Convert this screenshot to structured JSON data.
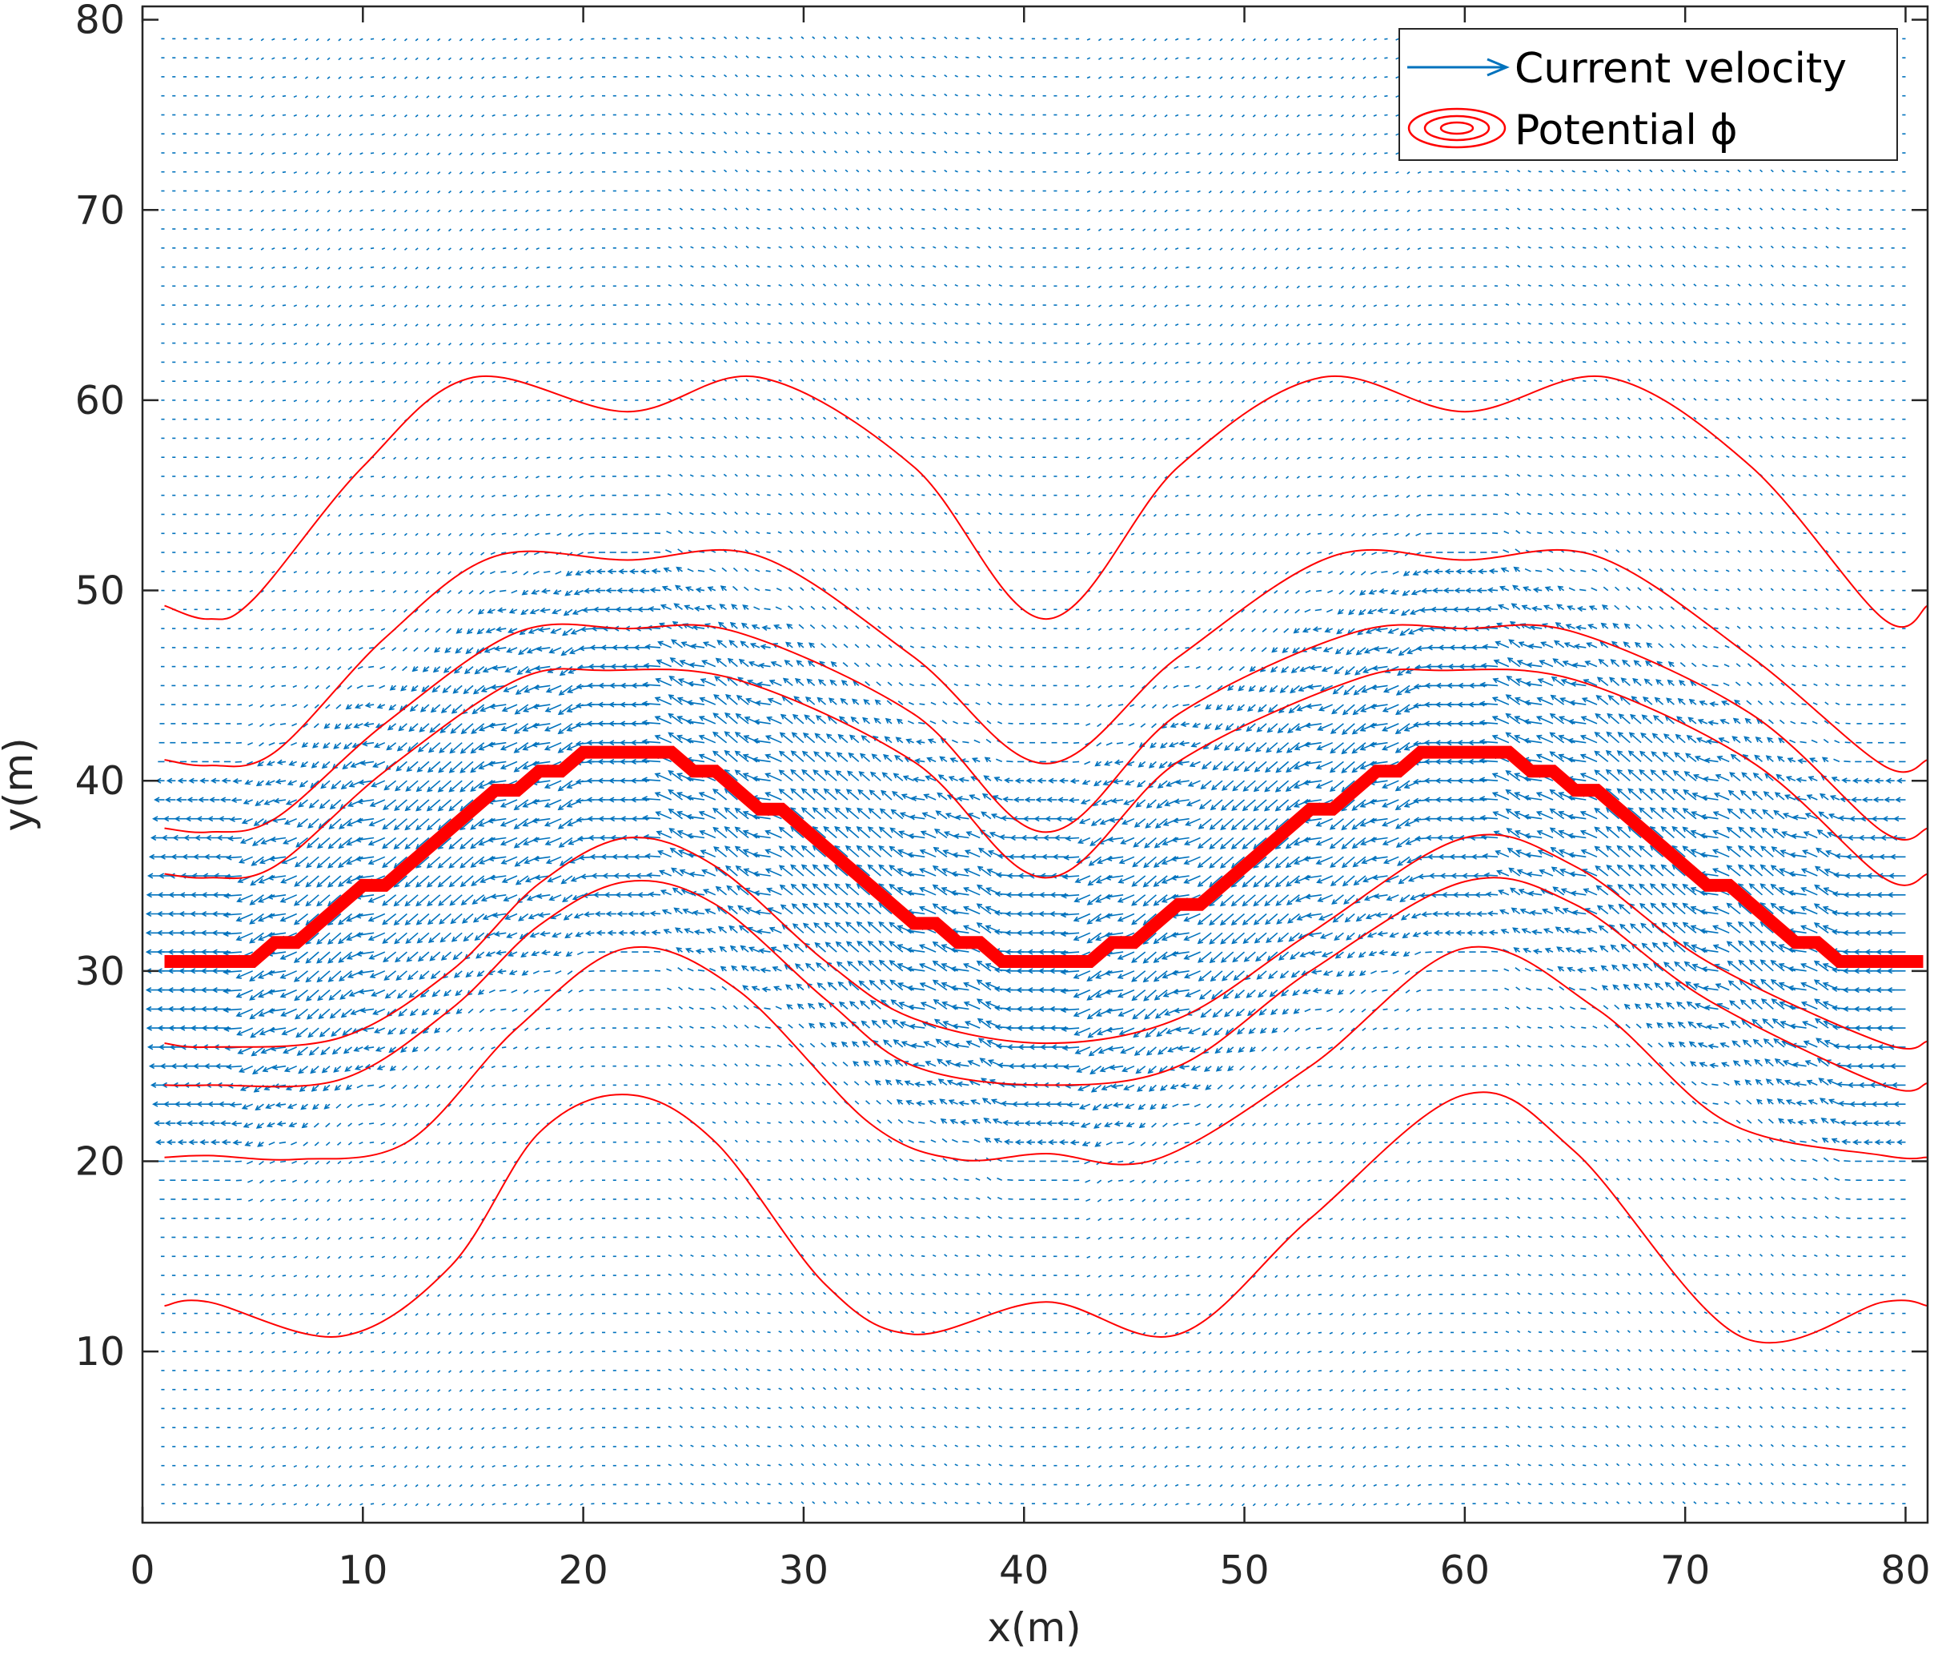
{
  "chart_data": {
    "type": "quiver_contour",
    "xlabel": "x(m)",
    "ylabel": "y(m)",
    "xlim": [
      0,
      80
    ],
    "ylim": [
      1,
      80
    ],
    "xticks": [
      "0",
      "10",
      "20",
      "30",
      "40",
      "50",
      "60",
      "70",
      "80"
    ],
    "yticks": [
      "10",
      "20",
      "30",
      "40",
      "50",
      "60",
      "70",
      "80"
    ],
    "xtick_values": [
      0,
      10,
      20,
      30,
      40,
      50,
      60,
      70,
      80
    ],
    "ytick_values": [
      10,
      20,
      30,
      40,
      50,
      60,
      70,
      80
    ],
    "grid": false,
    "legend_position": "top-right",
    "legend": [
      {
        "label": "Current velocity",
        "symbol": "arrow",
        "color": "#0072BD"
      },
      {
        "label": "Potential ϕ",
        "symbol": "contour",
        "color": "#FF0000"
      }
    ],
    "colors": {
      "quiver": "#0072BD",
      "contour": "#FF0000",
      "thick_path": "#FF0000",
      "axes": "#262626"
    },
    "thick_path": {
      "x": [
        1,
        5,
        6,
        7,
        10,
        11,
        16,
        17,
        18,
        19,
        20,
        24,
        25,
        26,
        28,
        29,
        35,
        36,
        37,
        38,
        39,
        43,
        44,
        45,
        47,
        48,
        53,
        54,
        56,
        57,
        58,
        62,
        63,
        64,
        65,
        66,
        71,
        72,
        75,
        76,
        77,
        80.8
      ],
      "y": [
        30.5,
        30.5,
        31.5,
        31.5,
        34.5,
        34.5,
        39.5,
        39.5,
        40.5,
        40.5,
        41.5,
        41.5,
        40.5,
        40.5,
        38.5,
        38.5,
        32.5,
        32.5,
        31.5,
        31.5,
        30.5,
        30.5,
        31.5,
        31.5,
        33.5,
        33.5,
        38.5,
        38.5,
        40.5,
        40.5,
        41.5,
        41.5,
        40.5,
        40.5,
        39.5,
        39.5,
        34.5,
        34.5,
        31.5,
        31.5,
        30.5,
        30.5
      ]
    },
    "contours": [
      {
        "x": [
          1,
          3,
          5,
          10,
          15,
          22,
          28,
          35,
          41,
          47,
          53.5,
          60,
          66.5,
          73,
          79,
          81
        ],
        "y": [
          49.2,
          48.5,
          49.5,
          56.5,
          61.2,
          59.4,
          61.2,
          56.5,
          48.5,
          56.5,
          61.2,
          59.4,
          61.2,
          56.5,
          48.5,
          49.2
        ]
      },
      {
        "x": [
          1,
          3,
          6,
          11,
          16,
          22,
          28,
          35,
          41,
          47,
          54,
          60,
          66,
          73,
          79,
          81
        ],
        "y": [
          41.1,
          40.8,
          41.5,
          47.5,
          51.8,
          51.6,
          51.8,
          46.5,
          40.9,
          46.5,
          51.8,
          51.6,
          51.8,
          46.5,
          40.8,
          41.1
        ]
      },
      {
        "x": [
          1,
          3,
          6,
          11,
          17,
          22,
          27,
          35,
          41,
          47,
          55,
          60,
          65,
          73,
          79,
          81
        ],
        "y": [
          37.5,
          37.3,
          38.0,
          43.0,
          47.8,
          48.0,
          47.8,
          43.5,
          37.3,
          43.5,
          47.8,
          48.0,
          47.8,
          43.5,
          37.3,
          37.5
        ]
      },
      {
        "x": [
          1,
          3,
          6,
          11,
          17,
          21,
          27,
          35,
          41,
          47,
          55,
          59,
          65,
          73,
          79,
          81
        ],
        "y": [
          35.1,
          34.9,
          35.5,
          40.5,
          45.3,
          45.8,
          45.3,
          41.0,
          34.9,
          41.0,
          45.3,
          45.8,
          45.3,
          41.0,
          34.9,
          35.1
        ]
      },
      {
        "x": [
          1,
          3,
          9,
          14,
          18,
          22,
          26,
          31,
          35,
          41,
          47,
          53,
          60,
          65,
          71,
          79,
          81
        ],
        "y": [
          26.2,
          26.0,
          26.5,
          30.0,
          34.6,
          37.0,
          35.5,
          30.5,
          27.5,
          26.2,
          27.5,
          32.0,
          37.0,
          35.5,
          30.5,
          26.2,
          26.3
        ]
      },
      {
        "x": [
          1,
          3,
          9,
          14,
          18,
          22,
          26,
          31,
          35,
          41,
          47,
          53,
          60,
          65,
          71,
          79,
          81
        ],
        "y": [
          24.0,
          24.0,
          24.3,
          28.0,
          32.4,
          34.7,
          33.5,
          28.5,
          25.0,
          24.0,
          25.0,
          30.0,
          34.7,
          33.5,
          28.5,
          24.0,
          24.1
        ]
      },
      {
        "x": [
          1,
          3,
          7,
          12,
          17,
          22,
          27,
          33,
          37,
          41,
          46,
          53,
          60,
          66,
          72,
          79,
          81
        ],
        "y": [
          20.2,
          20.3,
          20.1,
          21.0,
          27.0,
          31.2,
          29.0,
          22.0,
          20.1,
          20.4,
          20.1,
          25.0,
          31.2,
          28.0,
          22.0,
          20.3,
          20.2
        ]
      },
      {
        "x": [
          1,
          3,
          9,
          14,
          18,
          22,
          26,
          31,
          35,
          41,
          47,
          53,
          60,
          65,
          72.5,
          79,
          81
        ],
        "y": [
          12.4,
          12.6,
          10.8,
          14.5,
          21.5,
          23.5,
          21.0,
          13.5,
          10.9,
          12.6,
          10.9,
          17.0,
          23.5,
          20.5,
          10.8,
          12.6,
          12.4
        ]
      }
    ],
    "velocity_field": {
      "description_note": "",
      "grid_spacing": [
        1,
        1
      ],
      "x_range": [
        1,
        80
      ],
      "y_range": [
        2,
        79
      ],
      "band_center_y": 30.5,
      "max_speed_band_halfwidth": 6
    }
  }
}
